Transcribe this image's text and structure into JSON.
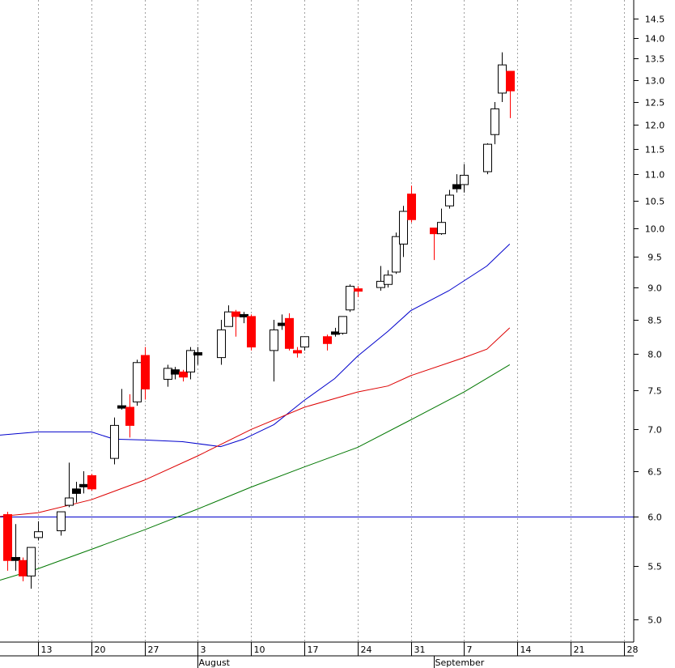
{
  "chart_data": {
    "type": "candlestick",
    "y_scale": "log",
    "ylim": [
      4.75,
      15.0
    ],
    "y_ticks": [
      "5.0",
      "5.5",
      "6.0",
      "6.5",
      "7.0",
      "7.5",
      "8.0",
      "8.5",
      "9.0",
      "9.5",
      "10.0",
      "10.5",
      "11.0",
      "11.5",
      "12.0",
      "12.5",
      "13.0",
      "13.5",
      "14.0",
      "14.5"
    ],
    "x_range": [
      "2012-07-08",
      "2012-10-01"
    ],
    "x_ticks": [
      {
        "date": "2012-07-13",
        "label": "13"
      },
      {
        "date": "2012-07-20",
        "label": "20"
      },
      {
        "date": "2012-07-27",
        "label": "27"
      },
      {
        "date": "2012-08-03",
        "label": "3"
      },
      {
        "date": "2012-08-10",
        "label": "10"
      },
      {
        "date": "2012-08-17",
        "label": "17"
      },
      {
        "date": "2012-08-24",
        "label": "24"
      },
      {
        "date": "2012-08-31",
        "label": "31"
      },
      {
        "date": "2012-09-07",
        "label": "7"
      },
      {
        "date": "2012-09-14",
        "label": "14"
      },
      {
        "date": "2012-09-21",
        "label": "21"
      },
      {
        "date": "2012-09-28",
        "label": "28"
      }
    ],
    "month_labels": [
      {
        "date": "2012-08-03",
        "label": "August"
      },
      {
        "date": "2012-09-03",
        "label": "September"
      }
    ],
    "grid": "vertical-dotted",
    "colors": {
      "up": "#ffffff",
      "down": "#ff0000",
      "doji": "#000000",
      "outline": "#000000",
      "sma_short": "#0000cc",
      "sma_mid": "#dd0000",
      "sma_long": "#007700",
      "hline": "#0000cc"
    },
    "horizontal_line": 6.0,
    "candles": [
      {
        "date": "2012-07-09",
        "open": 6.02,
        "high": 6.05,
        "low": 5.45,
        "close": 5.55,
        "kind": "down"
      },
      {
        "date": "2012-07-10",
        "open": 5.58,
        "high": 5.92,
        "low": 5.45,
        "close": 5.55,
        "kind": "doji"
      },
      {
        "date": "2012-07-11",
        "open": 5.55,
        "high": 5.58,
        "low": 5.35,
        "close": 5.4,
        "kind": "down"
      },
      {
        "date": "2012-07-12",
        "open": 5.4,
        "high": 5.65,
        "low": 5.28,
        "close": 5.68,
        "kind": "up"
      },
      {
        "date": "2012-07-13",
        "open": 5.78,
        "high": 5.95,
        "low": 5.75,
        "close": 5.84,
        "kind": "up"
      },
      {
        "date": "2012-07-16",
        "open": 5.85,
        "high": 6.05,
        "low": 5.8,
        "close": 6.05,
        "kind": "up"
      },
      {
        "date": "2012-07-17",
        "open": 6.12,
        "high": 6.6,
        "low": 6.1,
        "close": 6.2,
        "kind": "up"
      },
      {
        "date": "2012-07-18",
        "open": 6.25,
        "high": 6.38,
        "low": 6.15,
        "close": 6.3,
        "kind": "doji"
      },
      {
        "date": "2012-07-19",
        "open": 6.35,
        "high": 6.5,
        "low": 6.25,
        "close": 6.35,
        "kind": "doji"
      },
      {
        "date": "2012-07-20",
        "open": 6.45,
        "high": 6.47,
        "low": 6.28,
        "close": 6.3,
        "kind": "down"
      },
      {
        "date": "2012-07-23",
        "open": 6.65,
        "high": 7.15,
        "low": 6.58,
        "close": 7.05,
        "kind": "up"
      },
      {
        "date": "2012-07-24",
        "open": 7.28,
        "high": 7.52,
        "low": 7.25,
        "close": 7.3,
        "kind": "doji"
      },
      {
        "date": "2012-07-25",
        "open": 7.28,
        "high": 7.45,
        "low": 6.9,
        "close": 7.05,
        "kind": "down"
      },
      {
        "date": "2012-07-26",
        "open": 7.35,
        "high": 7.92,
        "low": 7.3,
        "close": 7.88,
        "kind": "up"
      },
      {
        "date": "2012-07-27",
        "open": 7.98,
        "high": 8.1,
        "low": 7.38,
        "close": 7.52,
        "kind": "down"
      },
      {
        "date": "2012-07-30",
        "open": 7.65,
        "high": 7.85,
        "low": 7.55,
        "close": 7.8,
        "kind": "up"
      },
      {
        "date": "2012-07-31",
        "open": 7.78,
        "high": 7.82,
        "low": 7.65,
        "close": 7.72,
        "kind": "doji"
      },
      {
        "date": "2012-08-01",
        "open": 7.75,
        "high": 7.78,
        "low": 7.62,
        "close": 7.68,
        "kind": "down"
      },
      {
        "date": "2012-08-02",
        "open": 7.75,
        "high": 8.1,
        "low": 7.65,
        "close": 8.05,
        "kind": "up"
      },
      {
        "date": "2012-08-03",
        "open": 8.02,
        "high": 8.1,
        "low": 7.85,
        "close": 8.0,
        "kind": "doji"
      },
      {
        "date": "2012-08-06",
        "open": 7.95,
        "high": 8.5,
        "low": 7.85,
        "close": 8.35,
        "kind": "up"
      },
      {
        "date": "2012-08-07",
        "open": 8.4,
        "high": 8.72,
        "low": 8.4,
        "close": 8.62,
        "kind": "up"
      },
      {
        "date": "2012-08-08",
        "open": 8.62,
        "high": 8.65,
        "low": 8.25,
        "close": 8.55,
        "kind": "down"
      },
      {
        "date": "2012-08-09",
        "open": 8.58,
        "high": 8.62,
        "low": 8.45,
        "close": 8.58,
        "kind": "doji"
      },
      {
        "date": "2012-08-10",
        "open": 8.55,
        "high": 8.58,
        "low": 8.05,
        "close": 8.1,
        "kind": "down"
      },
      {
        "date": "2012-08-13",
        "open": 8.05,
        "high": 8.5,
        "low": 7.62,
        "close": 8.35,
        "kind": "up"
      },
      {
        "date": "2012-08-14",
        "open": 8.45,
        "high": 8.58,
        "low": 8.35,
        "close": 8.45,
        "kind": "doji"
      },
      {
        "date": "2012-08-15",
        "open": 8.52,
        "high": 8.6,
        "low": 8.05,
        "close": 8.08,
        "kind": "down"
      },
      {
        "date": "2012-08-16",
        "open": 8.05,
        "high": 8.1,
        "low": 7.95,
        "close": 8.05,
        "kind": "down"
      },
      {
        "date": "2012-08-17",
        "open": 8.1,
        "high": 8.25,
        "low": 8.05,
        "close": 8.25,
        "kind": "up"
      },
      {
        "date": "2012-08-20",
        "open": 8.25,
        "high": 8.28,
        "low": 8.05,
        "close": 8.15,
        "kind": "down"
      },
      {
        "date": "2012-08-21",
        "open": 8.32,
        "high": 8.38,
        "low": 8.25,
        "close": 8.32,
        "kind": "doji"
      },
      {
        "date": "2012-08-22",
        "open": 8.3,
        "high": 8.55,
        "low": 8.28,
        "close": 8.55,
        "kind": "up"
      },
      {
        "date": "2012-08-23",
        "open": 8.65,
        "high": 9.05,
        "low": 8.62,
        "close": 9.02,
        "kind": "up"
      },
      {
        "date": "2012-08-24",
        "open": 8.98,
        "high": 9.02,
        "low": 8.85,
        "close": 8.95,
        "kind": "down"
      },
      {
        "date": "2012-08-27",
        "open": 9.0,
        "high": 9.35,
        "low": 8.95,
        "close": 9.1,
        "kind": "up"
      },
      {
        "date": "2012-08-28",
        "open": 9.05,
        "high": 9.28,
        "low": 9.0,
        "close": 9.2,
        "kind": "up"
      },
      {
        "date": "2012-08-29",
        "open": 9.25,
        "high": 9.92,
        "low": 9.22,
        "close": 9.85,
        "kind": "up"
      },
      {
        "date": "2012-08-30",
        "open": 9.72,
        "high": 10.4,
        "low": 9.5,
        "close": 10.3,
        "kind": "up"
      },
      {
        "date": "2012-08-31",
        "open": 10.62,
        "high": 10.78,
        "low": 10.1,
        "close": 10.15,
        "kind": "down"
      },
      {
        "date": "2012-09-03",
        "open": 10.0,
        "high": 10.0,
        "low": 9.45,
        "close": 9.9,
        "kind": "down"
      },
      {
        "date": "2012-09-04",
        "open": 9.9,
        "high": 10.35,
        "low": 9.88,
        "close": 10.1,
        "kind": "up"
      },
      {
        "date": "2012-09-05",
        "open": 10.4,
        "high": 10.7,
        "low": 10.35,
        "close": 10.6,
        "kind": "up"
      },
      {
        "date": "2012-09-06",
        "open": 10.8,
        "high": 11.0,
        "low": 10.65,
        "close": 10.72,
        "kind": "doji"
      },
      {
        "date": "2012-09-07",
        "open": 10.8,
        "high": 11.2,
        "low": 10.65,
        "close": 10.98,
        "kind": "up"
      },
      {
        "date": "2012-09-10",
        "open": 11.05,
        "high": 11.62,
        "low": 11.0,
        "close": 11.6,
        "kind": "up"
      },
      {
        "date": "2012-09-11",
        "open": 11.8,
        "high": 12.5,
        "low": 11.6,
        "close": 12.35,
        "kind": "up"
      },
      {
        "date": "2012-09-12",
        "open": 12.7,
        "high": 13.65,
        "low": 12.5,
        "close": 13.35,
        "kind": "up"
      },
      {
        "date": "2012-09-13",
        "open": 13.2,
        "high": 13.2,
        "low": 12.15,
        "close": 12.75,
        "kind": "down"
      }
    ],
    "series": [
      {
        "values": [
          [
            "2012-07-08",
            6.93
          ],
          [
            "2012-07-13",
            6.97
          ],
          [
            "2012-07-20",
            6.97
          ],
          [
            "2012-07-23",
            6.88
          ],
          [
            "2012-07-27",
            6.87
          ],
          [
            "2012-08-01",
            6.85
          ],
          [
            "2012-08-06",
            6.79
          ],
          [
            "2012-08-09",
            6.88
          ],
          [
            "2012-08-13",
            7.06
          ],
          [
            "2012-08-17",
            7.37
          ],
          [
            "2012-08-21",
            7.66
          ],
          [
            "2012-08-24",
            7.97
          ],
          [
            "2012-08-28",
            8.33
          ],
          [
            "2012-08-31",
            8.64
          ],
          [
            "2012-09-05",
            8.95
          ],
          [
            "2012-09-10",
            9.35
          ],
          [
            "2012-09-13",
            9.72
          ]
        ],
        "color": "sma_short"
      },
      {
        "values": [
          [
            "2012-07-08",
            6.0
          ],
          [
            "2012-07-13",
            6.04
          ],
          [
            "2012-07-20",
            6.18
          ],
          [
            "2012-07-27",
            6.4
          ],
          [
            "2012-08-03",
            6.68
          ],
          [
            "2012-08-10",
            7.0
          ],
          [
            "2012-08-17",
            7.28
          ],
          [
            "2012-08-24",
            7.48
          ],
          [
            "2012-08-28",
            7.56
          ],
          [
            "2012-08-31",
            7.7
          ],
          [
            "2012-09-07",
            7.95
          ],
          [
            "2012-09-10",
            8.07
          ],
          [
            "2012-09-13",
            8.38
          ]
        ],
        "color": "sma_mid"
      },
      {
        "values": [
          [
            "2012-07-08",
            5.36
          ],
          [
            "2012-07-13",
            5.47
          ],
          [
            "2012-07-20",
            5.66
          ],
          [
            "2012-07-27",
            5.86
          ],
          [
            "2012-08-03",
            6.08
          ],
          [
            "2012-08-10",
            6.32
          ],
          [
            "2012-08-17",
            6.55
          ],
          [
            "2012-08-24",
            6.78
          ],
          [
            "2012-08-31",
            7.12
          ],
          [
            "2012-09-07",
            7.48
          ],
          [
            "2012-09-13",
            7.85
          ]
        ],
        "color": "sma_long"
      }
    ]
  }
}
